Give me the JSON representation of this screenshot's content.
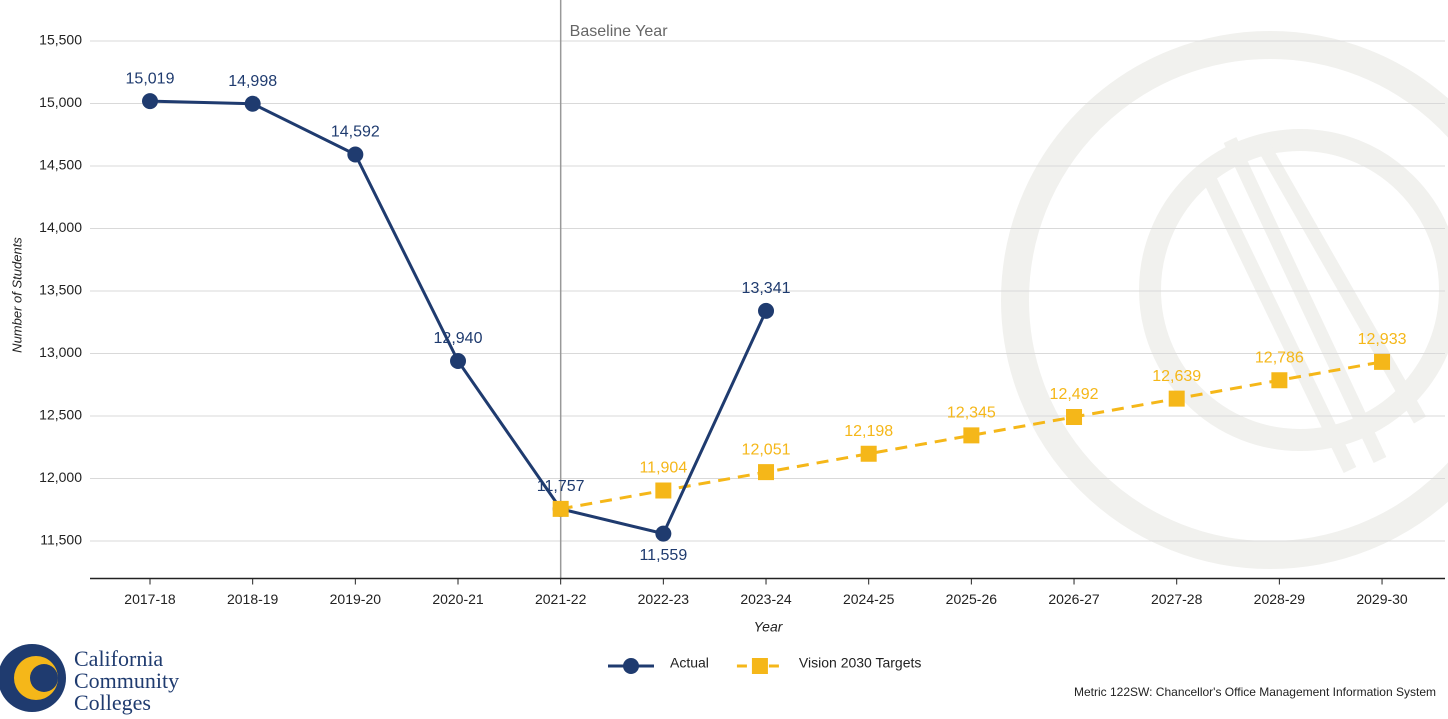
{
  "chart_data": {
    "type": "line",
    "categories": [
      "2017-18",
      "2018-19",
      "2019-20",
      "2020-21",
      "2021-22",
      "2022-23",
      "2023-24",
      "2024-25",
      "2025-26",
      "2026-27",
      "2027-28",
      "2028-29",
      "2029-30"
    ],
    "series": [
      {
        "name": "Actual",
        "color": "#1f3b6f",
        "marker": "circle",
        "dashed": false,
        "values": [
          15019,
          14998,
          14592,
          12940,
          11757,
          11559,
          13341,
          null,
          null,
          null,
          null,
          null,
          null
        ],
        "value_labels": [
          "15,019",
          "14,998",
          "14,592",
          "12,940",
          "11,757",
          "11,559",
          "13,341",
          null,
          null,
          null,
          null,
          null,
          null
        ]
      },
      {
        "name": "Vision 2030 Targets",
        "color": "#f5b719",
        "marker": "square",
        "dashed": true,
        "values": [
          null,
          null,
          null,
          null,
          11757,
          11904,
          12051,
          12198,
          12345,
          12492,
          12639,
          12786,
          12933
        ],
        "value_labels": [
          null,
          null,
          null,
          null,
          null,
          "11,904",
          "12,051",
          "12,198",
          "12,345",
          "12,492",
          "12,639",
          "12,786",
          "12,933"
        ]
      }
    ],
    "ylim": [
      11200,
      15800
    ],
    "yticks": [
      {
        "value": 11500,
        "label": "11,500"
      },
      {
        "value": 12000,
        "label": "12,000"
      },
      {
        "value": 12500,
        "label": "12,500"
      },
      {
        "value": 13000,
        "label": "13,000"
      },
      {
        "value": 13500,
        "label": "13,500"
      },
      {
        "value": 14000,
        "label": "14,000"
      },
      {
        "value": 14500,
        "label": "14,500"
      },
      {
        "value": 15000,
        "label": "15,000"
      },
      {
        "value": 15500,
        "label": "15,500"
      }
    ],
    "grid": true,
    "y_label": "Number of Students",
    "x_label": "Year",
    "annotation": {
      "text": "Baseline Year",
      "category": "2021-22"
    },
    "legend": "bottom",
    "source": "Metric 122SW: Chancellor's Office Management Information System",
    "logo_text": [
      "California",
      "Community",
      "Colleges"
    ]
  }
}
